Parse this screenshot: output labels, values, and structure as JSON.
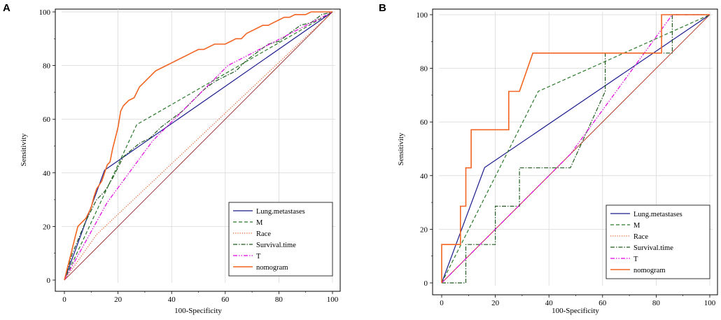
{
  "chart_data": [
    {
      "type": "line",
      "panel": "A",
      "xlabel": "100-Specificity",
      "ylabel": "Sensitivity",
      "xlim": [
        0,
        100
      ],
      "ylim": [
        0,
        100
      ],
      "xticks": [
        0,
        20,
        40,
        60,
        80,
        100
      ],
      "yticks": [
        0,
        20,
        40,
        60,
        80,
        100
      ],
      "grid": true,
      "legend_position": "bottom-right",
      "series": [
        {
          "name": "Lung.metastases",
          "color": "#1a1a8c",
          "dash": "solid",
          "points": [
            [
              0,
              0
            ],
            [
              15,
              41
            ],
            [
              100,
              100
            ]
          ]
        },
        {
          "name": "M",
          "color": "#2a7a2a",
          "dash": "dashed",
          "points": [
            [
              0,
              0
            ],
            [
              27,
              58
            ],
            [
              100,
              100
            ]
          ]
        },
        {
          "name": "Race",
          "color": "#e0602a",
          "dash": "dotted",
          "points": [
            [
              0,
              0
            ],
            [
              12,
              17
            ],
            [
              100,
              100
            ]
          ]
        },
        {
          "name": "Survival.time",
          "color": "#1f5a1f",
          "dash": "dashdot",
          "points": [
            [
              0,
              0
            ],
            [
              3,
              10
            ],
            [
              8,
              22
            ],
            [
              12,
              30
            ],
            [
              15,
              33
            ],
            [
              18,
              38
            ],
            [
              22,
              46
            ],
            [
              28,
              51
            ],
            [
              32,
              53
            ],
            [
              36,
              57
            ],
            [
              40,
              60
            ],
            [
              44,
              63
            ],
            [
              48,
              67
            ],
            [
              52,
              71
            ],
            [
              56,
              74
            ],
            [
              60,
              76
            ],
            [
              64,
              78
            ],
            [
              68,
              82
            ],
            [
              72,
              85
            ],
            [
              76,
              88
            ],
            [
              80,
              89
            ],
            [
              84,
              92
            ],
            [
              88,
              95
            ],
            [
              92,
              96
            ],
            [
              96,
              99
            ],
            [
              100,
              100
            ]
          ]
        },
        {
          "name": "T",
          "color": "#e000e0",
          "dash": "dashdotdot",
          "points": [
            [
              0,
              0
            ],
            [
              16,
              29
            ],
            [
              33,
              52
            ],
            [
              61,
              80
            ],
            [
              100,
              100
            ]
          ]
        },
        {
          "name": "nomogram",
          "color": "#f26522",
          "dash": "solid",
          "points": [
            [
              0,
              0
            ],
            [
              1,
              4
            ],
            [
              2,
              8
            ],
            [
              3,
              12
            ],
            [
              4,
              16
            ],
            [
              5,
              20
            ],
            [
              6,
              21
            ],
            [
              7,
              22
            ],
            [
              8,
              23
            ],
            [
              9,
              25
            ],
            [
              10,
              27
            ],
            [
              11,
              31
            ],
            [
              12,
              34
            ],
            [
              14,
              37
            ],
            [
              15,
              40
            ],
            [
              16,
              43
            ],
            [
              17,
              44
            ],
            [
              18,
              49
            ],
            [
              19,
              53
            ],
            [
              20,
              57
            ],
            [
              21,
              63
            ],
            [
              22,
              65
            ],
            [
              24,
              67
            ],
            [
              26,
              68
            ],
            [
              28,
              72
            ],
            [
              30,
              74
            ],
            [
              32,
              76
            ],
            [
              34,
              78
            ],
            [
              36,
              79
            ],
            [
              38,
              80
            ],
            [
              40,
              81
            ],
            [
              42,
              82
            ],
            [
              44,
              83
            ],
            [
              46,
              84
            ],
            [
              48,
              85
            ],
            [
              50,
              86
            ],
            [
              52,
              86
            ],
            [
              54,
              87
            ],
            [
              56,
              88
            ],
            [
              58,
              88
            ],
            [
              60,
              88
            ],
            [
              62,
              89
            ],
            [
              64,
              90
            ],
            [
              66,
              90
            ],
            [
              68,
              92
            ],
            [
              70,
              93
            ],
            [
              72,
              94
            ],
            [
              74,
              95
            ],
            [
              76,
              95
            ],
            [
              78,
              96
            ],
            [
              80,
              97
            ],
            [
              82,
              98
            ],
            [
              84,
              98
            ],
            [
              86,
              99
            ],
            [
              88,
              99
            ],
            [
              90,
              99
            ],
            [
              92,
              100
            ],
            [
              100,
              100
            ]
          ]
        }
      ]
    },
    {
      "type": "line",
      "panel": "B",
      "xlabel": "100-Specificity",
      "ylabel": "Sensitivity",
      "xlim": [
        0,
        100
      ],
      "ylim": [
        0,
        100
      ],
      "xticks": [
        0,
        20,
        40,
        60,
        80,
        100
      ],
      "yticks": [
        0,
        20,
        40,
        60,
        80,
        100
      ],
      "grid": true,
      "legend_position": "bottom-right",
      "series": [
        {
          "name": "Lung.metastases",
          "color": "#1a1a8c",
          "dash": "solid",
          "points": [
            [
              0,
              0
            ],
            [
              16,
              43
            ],
            [
              100,
              100
            ]
          ]
        },
        {
          "name": "M",
          "color": "#2a7a2a",
          "dash": "dashed",
          "points": [
            [
              0,
              0
            ],
            [
              36,
              71.4
            ],
            [
              100,
              100
            ]
          ]
        },
        {
          "name": "Race",
          "color": "#e0602a",
          "dash": "dotted",
          "points": [
            [
              0,
              0
            ],
            [
              100,
              100
            ]
          ]
        },
        {
          "name": "Survival.time",
          "color": "#1f5a1f",
          "dash": "dashdot",
          "points": [
            [
              0,
              0
            ],
            [
              9,
              0
            ],
            [
              9,
              14.3
            ],
            [
              20,
              14.3
            ],
            [
              20,
              28.6
            ],
            [
              29,
              28.6
            ],
            [
              29,
              42.9
            ],
            [
              48,
              42.9
            ],
            [
              61,
              71.4
            ],
            [
              61,
              85.7
            ],
            [
              86,
              85.7
            ],
            [
              86,
              100
            ],
            [
              100,
              100
            ]
          ]
        },
        {
          "name": "T",
          "color": "#e000e0",
          "dash": "dashdotdot",
          "points": [
            [
              0,
              0
            ],
            [
              48,
              48
            ],
            [
              86,
              100
            ],
            [
              100,
              100
            ]
          ]
        },
        {
          "name": "nomogram",
          "color": "#f26522",
          "dash": "solid",
          "points": [
            [
              0,
              0
            ],
            [
              0,
              14.3
            ],
            [
              7,
              14.3
            ],
            [
              7,
              28.6
            ],
            [
              9,
              28.6
            ],
            [
              9,
              42.9
            ],
            [
              11,
              42.9
            ],
            [
              11,
              57.1
            ],
            [
              25,
              57.1
            ],
            [
              25,
              71.4
            ],
            [
              29,
              71.4
            ],
            [
              34,
              85.7
            ],
            [
              82,
              85.7
            ],
            [
              82,
              100
            ],
            [
              100,
              100
            ]
          ]
        }
      ]
    }
  ]
}
